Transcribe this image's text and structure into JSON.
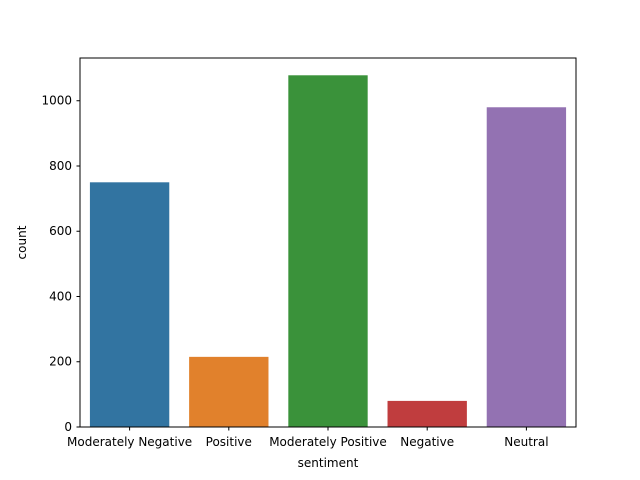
{
  "chart_data": {
    "type": "bar",
    "title": "",
    "xlabel": "sentiment",
    "ylabel": "count",
    "categories": [
      "Moderately Negative",
      "Positive",
      "Moderately Positive",
      "Negative",
      "Neutral"
    ],
    "values": [
      750,
      215,
      1078,
      80,
      980
    ],
    "colors": [
      "#3274a1",
      "#e1812c",
      "#3a923a",
      "#c03d3e",
      "#9372b2"
    ],
    "ylim": [
      0,
      1131
    ],
    "yticks": [
      0,
      200,
      400,
      600,
      800,
      1000
    ],
    "grid": false,
    "legend": "none"
  }
}
